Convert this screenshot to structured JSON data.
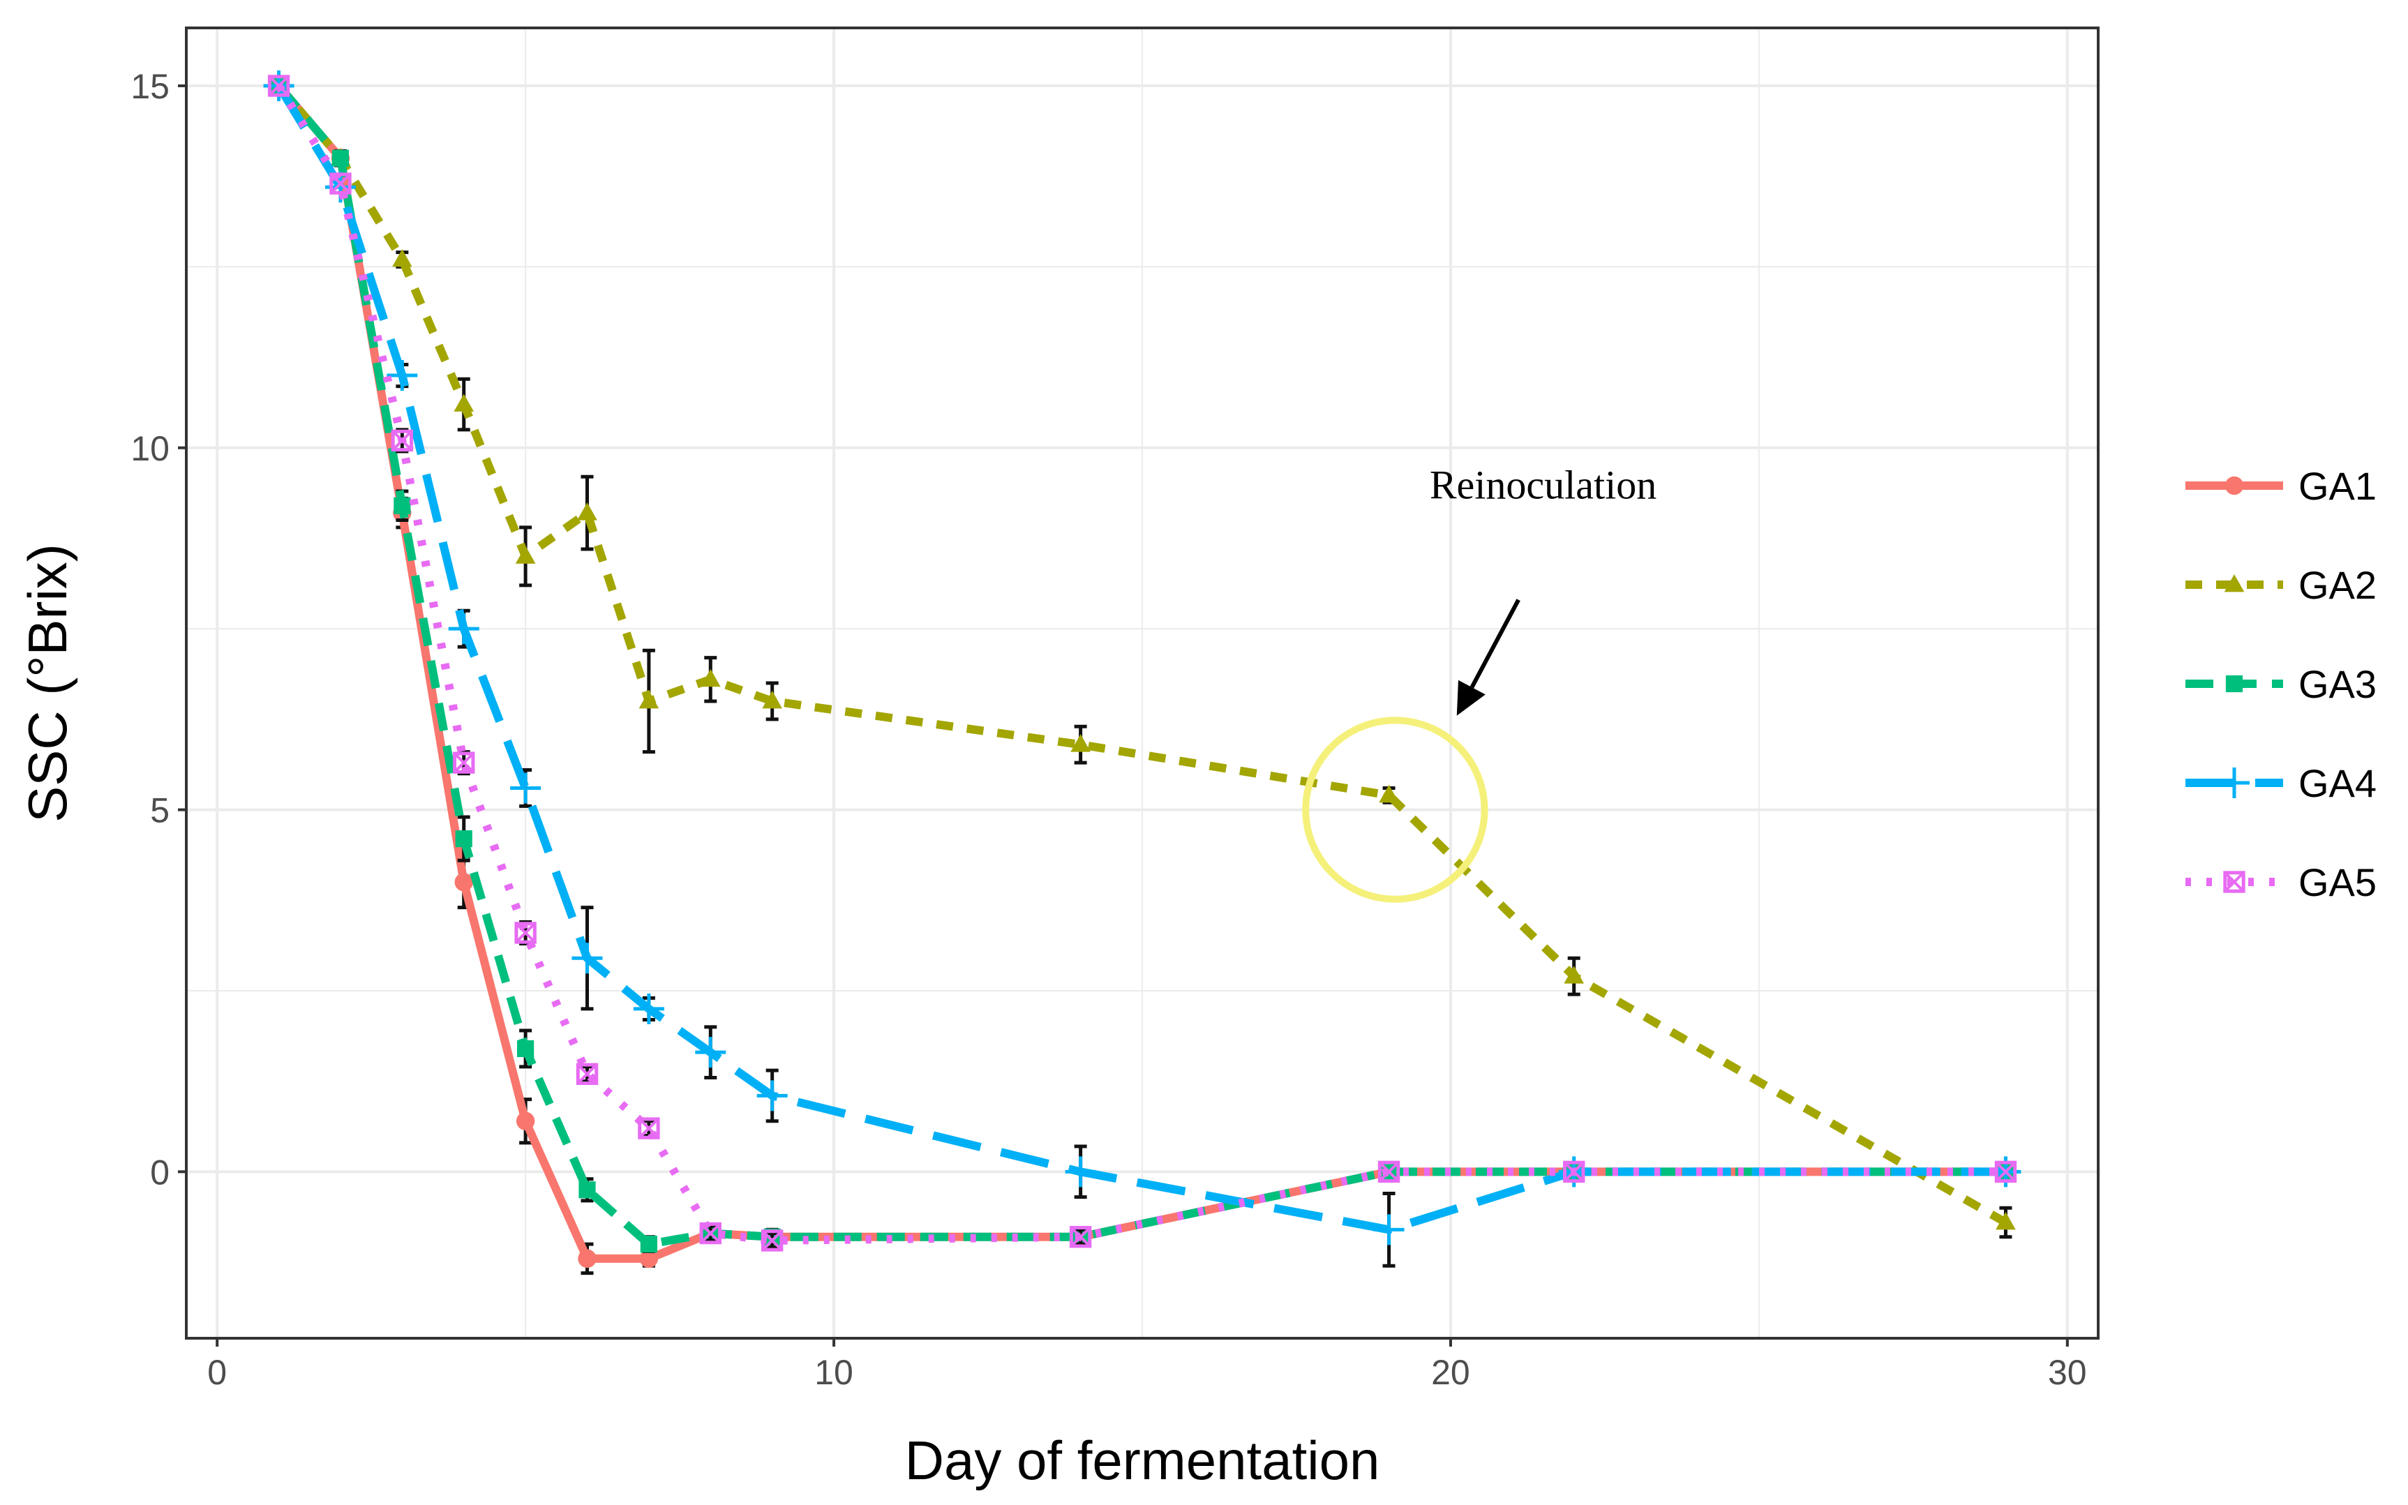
{
  "chart_data": {
    "type": "line",
    "title": "",
    "xlabel": "Day of fermentation",
    "ylabel": "SSC (°Brix)",
    "xlim": [
      -0.5,
      30.5
    ],
    "ylim": [
      -2.3,
      15.8
    ],
    "xticks": [
      0,
      10,
      20,
      30
    ],
    "yticks": [
      0,
      5,
      10,
      15
    ],
    "xtick_labels": [
      "0",
      "10",
      "20",
      "30"
    ],
    "ytick_labels": [
      "0",
      "5",
      "10",
      "15"
    ],
    "grid": true,
    "legend_position": "right",
    "series": [
      {
        "name": "GA1",
        "color": "#F8766D",
        "marker": "circle",
        "linestyle": "solid",
        "points": [
          [
            1,
            15
          ],
          [
            2,
            14
          ],
          [
            3,
            9.1
          ],
          [
            4,
            4
          ],
          [
            5,
            0.7
          ],
          [
            6,
            -1.2
          ],
          [
            7,
            -1.2
          ],
          [
            8,
            -0.85
          ],
          [
            9,
            -0.9
          ],
          [
            14,
            -0.9
          ],
          [
            19,
            0
          ],
          [
            22,
            0
          ],
          [
            29,
            0
          ]
        ],
        "errors": [
          0,
          0,
          0.2,
          0.35,
          0.3,
          0.2,
          0.1,
          0.1,
          0.1,
          0.1,
          0,
          0,
          0
        ]
      },
      {
        "name": "GA2",
        "color": "#A3A500",
        "marker": "triangle",
        "linestyle": "short-dash",
        "points": [
          [
            1,
            15
          ],
          [
            2,
            14
          ],
          [
            3,
            12.6
          ],
          [
            4,
            10.6
          ],
          [
            5,
            8.5
          ],
          [
            6,
            9.1
          ],
          [
            7,
            6.5
          ],
          [
            8,
            6.8
          ],
          [
            9,
            6.5
          ],
          [
            14,
            5.9
          ],
          [
            19,
            5.2
          ],
          [
            22,
            2.7
          ],
          [
            29,
            -0.7
          ]
        ],
        "errors": [
          0,
          0.1,
          0.1,
          0.35,
          0.4,
          0.5,
          0.7,
          0.3,
          0.25,
          0.25,
          0.1,
          0.25,
          0.2
        ]
      },
      {
        "name": "GA3",
        "color": "#00BF7D",
        "marker": "square",
        "linestyle": "dash",
        "points": [
          [
            1,
            15
          ],
          [
            2,
            14
          ],
          [
            3,
            9.2
          ],
          [
            4,
            4.6
          ],
          [
            5,
            1.7
          ],
          [
            6,
            -0.25
          ],
          [
            7,
            -1
          ],
          [
            8,
            -0.85
          ],
          [
            9,
            -0.9
          ],
          [
            14,
            -0.9
          ],
          [
            19,
            0
          ],
          [
            22,
            0
          ],
          [
            29,
            0
          ]
        ],
        "errors": [
          0,
          0,
          0.2,
          0.3,
          0.25,
          0.15,
          0.1,
          0.1,
          0.1,
          0.1,
          0,
          0,
          0
        ]
      },
      {
        "name": "GA4",
        "color": "#00B0F6",
        "marker": "plus",
        "linestyle": "long-dash",
        "points": [
          [
            1,
            15
          ],
          [
            2,
            13.6
          ],
          [
            3,
            11
          ],
          [
            4,
            7.5
          ],
          [
            5,
            5.3
          ],
          [
            6,
            2.95
          ],
          [
            7,
            2.25
          ],
          [
            8,
            1.65
          ],
          [
            9,
            1.05
          ],
          [
            14,
            0
          ],
          [
            19,
            -0.8
          ],
          [
            22,
            0
          ],
          [
            29,
            0
          ]
        ],
        "errors": [
          0,
          0,
          0.15,
          0.25,
          0.25,
          0.7,
          0.15,
          0.35,
          0.35,
          0.35,
          0.5,
          0,
          0
        ]
      },
      {
        "name": "GA5",
        "color": "#E76BF3",
        "marker": "square-x",
        "linestyle": "dotted",
        "points": [
          [
            1,
            15
          ],
          [
            2,
            13.65
          ],
          [
            3,
            10.1
          ],
          [
            4,
            5.65
          ],
          [
            5,
            3.3
          ],
          [
            6,
            1.35
          ],
          [
            7,
            0.6
          ],
          [
            8,
            -0.85
          ],
          [
            9,
            -0.95
          ],
          [
            14,
            -0.9
          ],
          [
            19,
            0
          ],
          [
            22,
            0
          ],
          [
            29,
            0
          ]
        ],
        "errors": [
          0,
          0,
          0.15,
          0.15,
          0.15,
          0.1,
          0.1,
          0.1,
          0.1,
          0.1,
          0,
          0,
          0
        ]
      }
    ],
    "annotations": [
      {
        "text": "Reinoculation",
        "x": 21.5,
        "y": 9.3,
        "arrow_from": [
          21.1,
          7.9
        ],
        "arrow_to": [
          20.1,
          6.3
        ],
        "circle_center": [
          19.1,
          5.0
        ],
        "circle_radius_x": 1.45,
        "circle_color": "#F5F07A"
      }
    ]
  }
}
